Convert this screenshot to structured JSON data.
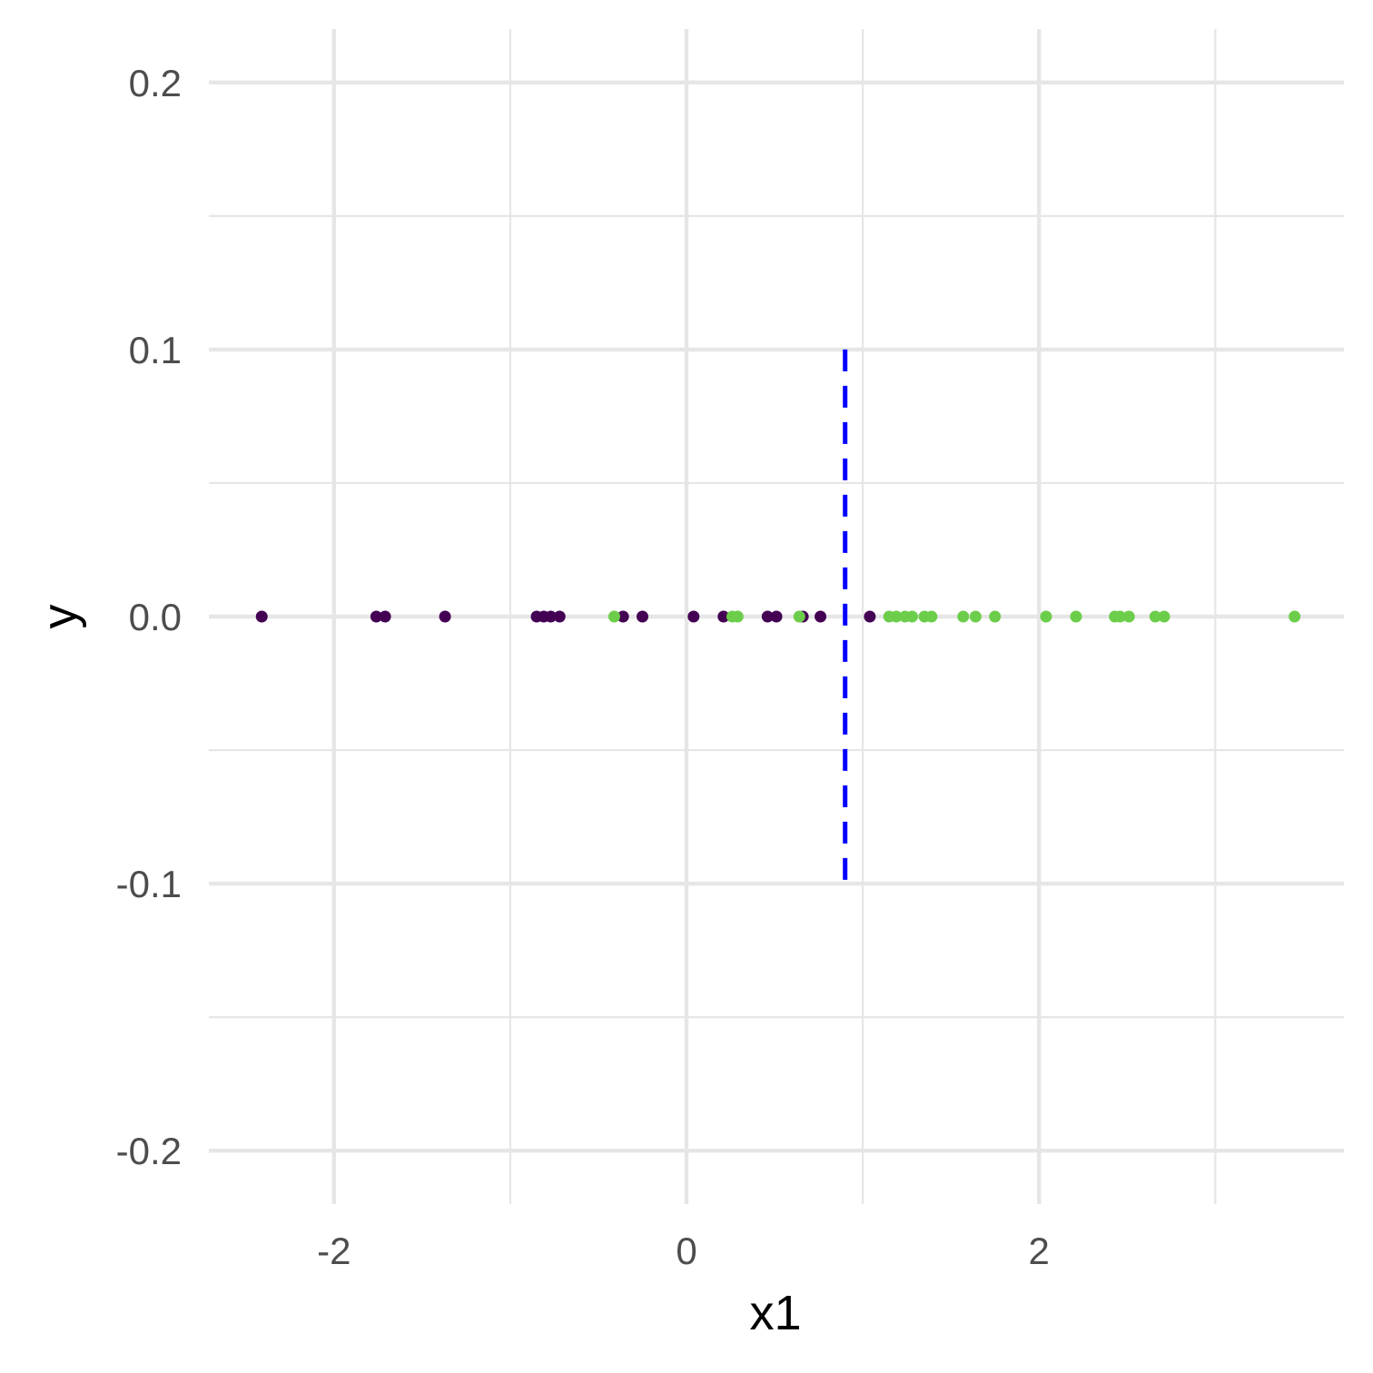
{
  "chart_data": {
    "type": "scatter",
    "title": "",
    "xlabel": "x1",
    "ylabel": "y",
    "xlim": [
      -2.71,
      3.73
    ],
    "ylim": [
      -0.22,
      0.22
    ],
    "x_ticks": [
      -2,
      0,
      2
    ],
    "x_tick_labels": [
      "-2",
      "0",
      "2"
    ],
    "x_minor_ticks": [
      -1,
      1,
      3
    ],
    "y_ticks": [
      -0.2,
      -0.1,
      0.0,
      0.1,
      0.2
    ],
    "y_tick_labels": [
      "-0.2",
      "-0.1",
      "0.0",
      "0.1",
      "0.2"
    ],
    "y_minor_ticks": [
      -0.15,
      -0.05,
      0.05,
      0.15
    ],
    "grid": true,
    "legend": "none",
    "colors": {
      "class_dark": "#440154",
      "class_green": "#6ccd4a",
      "threshold": "#0000ff",
      "grid": "#e6e6e6"
    },
    "series": [
      {
        "color": "#440154",
        "x": [
          -2.41,
          -1.76,
          -1.71,
          -1.37,
          -0.85,
          -0.81,
          -0.77,
          -0.72,
          -0.36,
          -0.25,
          0.04,
          0.21,
          0.46,
          0.51,
          0.66,
          0.76,
          1.04
        ],
        "y": [
          0,
          0,
          0,
          0,
          0,
          0,
          0,
          0,
          0,
          0,
          0,
          0,
          0,
          0,
          0,
          0,
          0
        ]
      },
      {
        "color": "#6ccd4a",
        "x": [
          -0.41,
          0.26,
          0.29,
          0.64,
          1.15,
          1.19,
          1.24,
          1.28,
          1.35,
          1.39,
          1.57,
          1.64,
          1.75,
          2.04,
          2.21,
          2.43,
          2.46,
          2.51,
          2.66,
          2.71,
          3.45
        ],
        "y": [
          0,
          0,
          0,
          0,
          0,
          0,
          0,
          0,
          0,
          0,
          0,
          0,
          0,
          0,
          0,
          0,
          0,
          0,
          0,
          0,
          0
        ]
      }
    ],
    "threshold_line": {
      "x": 0.9,
      "y_range": [
        -0.1,
        0.1
      ],
      "style": "dashed"
    }
  }
}
